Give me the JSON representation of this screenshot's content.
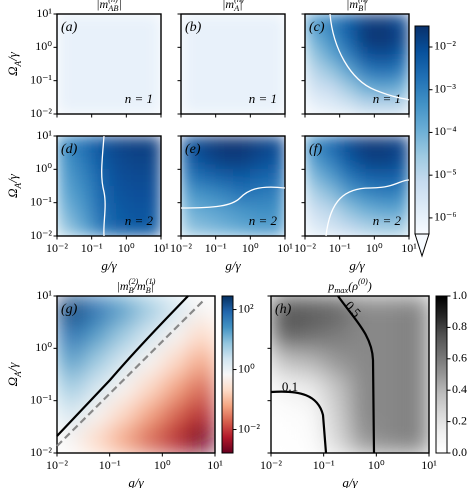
{
  "chart_data": [
    {
      "type": "heatmap",
      "title": "|m^{(n)}_{AB}|",
      "panel_label": "(a)",
      "annotation": "n = 1",
      "ylabel": "Ω_A/γ",
      "xscale": "log",
      "yscale": "log",
      "xlim": [
        0.01,
        10
      ],
      "ylim": [
        0.01,
        10
      ],
      "xticks": [
        0.01,
        0.1,
        1,
        10
      ],
      "xticklabels": false,
      "yticks": [
        {
          "value": 0.01,
          "label": "10⁻²"
        },
        {
          "value": 0.1,
          "label": "10⁻¹"
        },
        {
          "value": 1,
          "label": "10⁰"
        },
        {
          "value": 10,
          "label": "10¹"
        }
      ],
      "colormap": "Blues",
      "zscale": "log",
      "clim": [
        4.2e-07,
        0.031
      ],
      "z": [
        [
          1e-06,
          1e-06,
          1e-06,
          1e-06,
          1e-06,
          1e-06
        ],
        [
          1e-06,
          1e-06,
          1e-06,
          1e-06,
          1e-06,
          1e-06
        ],
        [
          1e-06,
          1e-06,
          1e-06,
          1e-06,
          1e-06,
          1e-06
        ],
        [
          1e-06,
          1e-06,
          1e-06,
          1e-06,
          1e-06,
          1e-06
        ],
        [
          1e-06,
          1e-06,
          1e-06,
          1e-06,
          1e-06,
          1e-06
        ],
        [
          1e-06,
          1e-06,
          1e-06,
          1e-06,
          1e-06,
          1e-06
        ]
      ]
    },
    {
      "type": "heatmap",
      "title": "|m^{(n)}_{A}|",
      "panel_label": "(b)",
      "annotation": "n = 1",
      "xscale": "log",
      "yscale": "log",
      "xlim": [
        0.01,
        10
      ],
      "ylim": [
        0.01,
        10
      ],
      "xticks": [
        0.01,
        0.1,
        1,
        10
      ],
      "xticklabels": false,
      "yticks": [
        0.01,
        0.1,
        1,
        10
      ],
      "yticklabels": false,
      "colormap": "Blues",
      "zscale": "log",
      "clim": [
        4.2e-07,
        0.031
      ],
      "z": [
        [
          1e-06,
          1e-06,
          1e-06,
          1e-06,
          1e-06,
          1e-06
        ],
        [
          1e-06,
          1e-06,
          1e-06,
          1e-06,
          1e-06,
          1e-06
        ],
        [
          1e-06,
          1e-06,
          1e-06,
          1e-06,
          1e-06,
          1e-06
        ],
        [
          1e-06,
          1e-06,
          1e-06,
          1e-06,
          1e-06,
          1e-06
        ],
        [
          1e-06,
          1e-06,
          1e-06,
          1e-06,
          1e-06,
          1e-06
        ],
        [
          1e-06,
          1e-06,
          1e-06,
          1e-06,
          1e-06,
          1e-06
        ]
      ]
    },
    {
      "type": "heatmap",
      "title": "|m^{(n)}_{B}|",
      "panel_label": "(c)",
      "annotation": "n = 1",
      "xscale": "log",
      "yscale": "log",
      "xlim": [
        0.01,
        10
      ],
      "ylim": [
        0.01,
        10
      ],
      "xticks": [
        0.01,
        0.1,
        1,
        10
      ],
      "xticklabels": false,
      "yticks": [
        0.01,
        0.1,
        1,
        10
      ],
      "yticklabels": false,
      "colormap": "Blues",
      "zscale": "log",
      "clim": [
        4.2e-07,
        0.031
      ],
      "z": [
        [
          0.00032,
          0.001,
          0.005,
          0.016,
          0.02,
          0.01
        ],
        [
          0.0001,
          0.0005,
          0.0032,
          0.02,
          0.025,
          0.013
        ],
        [
          3.2e-05,
          0.00016,
          0.001,
          0.0063,
          0.01,
          0.005
        ],
        [
          1e-05,
          3.2e-05,
          0.00016,
          0.001,
          0.0016,
          0.001
        ],
        [
          3.2e-06,
          6.3e-06,
          2.5e-05,
          0.0001,
          0.00016,
          0.0001
        ],
        [
          1e-06,
          1.6e-06,
          3.2e-06,
          1e-05,
          1e-05,
          1e-05
        ]
      ]
    },
    {
      "type": "heatmap",
      "panel_label": "(d)",
      "annotation": "n = 2",
      "xlabel": "g/γ",
      "ylabel": "Ω_A/γ",
      "xscale": "log",
      "yscale": "log",
      "xlim": [
        0.01,
        10
      ],
      "ylim": [
        0.01,
        10
      ],
      "xticks": [
        {
          "value": 0.01,
          "label": "10⁻²"
        },
        {
          "value": 0.1,
          "label": "10⁻¹"
        },
        {
          "value": 1,
          "label": "10⁰"
        },
        {
          "value": 10,
          "label": "10¹"
        }
      ],
      "yticks": [
        {
          "value": 0.01,
          "label": "10⁻²"
        },
        {
          "value": 0.1,
          "label": "10⁻¹"
        },
        {
          "value": 1,
          "label": "10⁰"
        },
        {
          "value": 10,
          "label": "10¹"
        }
      ],
      "colormap": "Blues",
      "zscale": "log",
      "clim": [
        4.2e-07,
        0.031
      ],
      "z": [
        [
          0.00063,
          0.002,
          0.0063,
          0.013,
          0.016,
          0.016
        ],
        [
          0.0004,
          0.0013,
          0.005,
          0.01,
          0.013,
          0.013
        ],
        [
          0.00025,
          0.0008,
          0.0032,
          0.008,
          0.01,
          0.01
        ],
        [
          0.00016,
          0.0005,
          0.0025,
          0.0063,
          0.008,
          0.008
        ],
        [
          8e-05,
          0.00032,
          0.002,
          0.005,
          0.0063,
          0.0063
        ],
        [
          3.2e-05,
          0.00016,
          0.0013,
          0.004,
          0.005,
          0.005
        ]
      ]
    },
    {
      "type": "heatmap",
      "panel_label": "(e)",
      "annotation": "n = 2",
      "xlabel": "g/γ",
      "xscale": "log",
      "yscale": "log",
      "xlim": [
        0.01,
        10
      ],
      "ylim": [
        0.01,
        10
      ],
      "xticks": [
        {
          "value": 0.01,
          "label": "10⁻²"
        },
        {
          "value": 0.1,
          "label": "10⁻¹"
        },
        {
          "value": 1,
          "label": "10⁰"
        },
        {
          "value": 10,
          "label": "10¹"
        }
      ],
      "yticks": [
        0.01,
        0.1,
        1,
        10
      ],
      "yticklabels": false,
      "colormap": "Blues",
      "zscale": "log",
      "clim": [
        4.2e-07,
        0.031
      ],
      "z": [
        [
          0.0063,
          0.016,
          0.025,
          0.025,
          0.016,
          0.01
        ],
        [
          0.004,
          0.01,
          0.016,
          0.016,
          0.01,
          0.0063
        ],
        [
          0.0013,
          0.0025,
          0.004,
          0.005,
          0.0032,
          0.0025
        ],
        [
          0.00032,
          0.0005,
          0.0008,
          0.0016,
          0.0013,
          0.001
        ],
        [
          0.0001,
          0.00016,
          0.00025,
          0.0004,
          0.0005,
          0.0005
        ],
        [
          4e-05,
          6.3e-05,
          0.0001,
          0.00016,
          0.00025,
          0.00025
        ]
      ]
    },
    {
      "type": "heatmap",
      "panel_label": "(f)",
      "annotation": "n = 2",
      "xlabel": "g/γ",
      "xscale": "log",
      "yscale": "log",
      "xlim": [
        0.01,
        10
      ],
      "ylim": [
        0.01,
        10
      ],
      "xticks": [
        {
          "value": 0.01,
          "label": "10⁻²"
        },
        {
          "value": 0.1,
          "label": "10⁻¹"
        },
        {
          "value": 1,
          "label": "10⁰"
        },
        {
          "value": 10,
          "label": "10¹"
        }
      ],
      "yticks": [
        0.01,
        0.1,
        1,
        10
      ],
      "yticklabels": false,
      "colormap": "Blues",
      "zscale": "log",
      "clim": [
        4.2e-07,
        0.031
      ],
      "z": [
        [
          0.00063,
          0.0025,
          0.01,
          0.02,
          0.02,
          0.013
        ],
        [
          0.00025,
          0.001,
          0.005,
          0.013,
          0.016,
          0.01
        ],
        [
          6.3e-05,
          0.00025,
          0.0013,
          0.0032,
          0.004,
          0.0032
        ],
        [
          1.6e-05,
          5e-05,
          0.00025,
          0.00063,
          0.001,
          0.0008
        ],
        [
          5e-06,
          1e-05,
          4e-05,
          0.0001,
          0.00016,
          0.00016
        ],
        [
          1.6e-06,
          3.2e-06,
          8e-06,
          1.6e-05,
          2.5e-05,
          2.5e-05
        ]
      ]
    },
    {
      "type": "heatmap",
      "title": "|m^{(2)}_{B}/m^{(1)}_{B}|",
      "panel_label": "(g)",
      "xlabel": "g/γ",
      "ylabel": "Ω_A/γ",
      "xscale": "log",
      "yscale": "log",
      "xlim": [
        0.01,
        10
      ],
      "ylim": [
        0.01,
        10
      ],
      "xticks": [
        {
          "value": 0.01,
          "label": "10⁻²"
        },
        {
          "value": 0.1,
          "label": "10⁻¹"
        },
        {
          "value": 1,
          "label": "10⁰"
        },
        {
          "value": 10,
          "label": "10¹"
        }
      ],
      "yticks": [
        {
          "value": 0.01,
          "label": "10⁻²"
        },
        {
          "value": 0.1,
          "label": "10⁻¹"
        },
        {
          "value": 1,
          "label": "10⁰"
        },
        {
          "value": 10,
          "label": "10¹"
        }
      ],
      "colormap": "RdBu",
      "zscale": "log",
      "clim": [
        0.00165,
        283
      ],
      "z": [
        [
          200,
          63,
          20,
          6.3,
          2,
          0.63
        ],
        [
          63,
          20,
          6.3,
          2,
          0.63,
          0.2
        ],
        [
          20,
          6.3,
          2,
          0.63,
          0.2,
          0.063
        ],
        [
          6.3,
          2,
          0.63,
          0.2,
          0.063,
          0.02
        ],
        [
          2,
          0.63,
          0.2,
          0.063,
          0.02,
          0.0063
        ],
        [
          0.63,
          0.2,
          0.063,
          0.02,
          0.0063,
          0.002
        ]
      ]
    },
    {
      "type": "heatmap",
      "title": "p_{max}(ρ^{(0)})",
      "panel_label": "(h)",
      "xlabel": "g/γ",
      "xscale": "log",
      "yscale": "log",
      "xlim": [
        0.01,
        10
      ],
      "ylim": [
        0.01,
        10
      ],
      "xticks": [
        {
          "value": 0.01,
          "label": "10⁻²"
        },
        {
          "value": 0.1,
          "label": "10⁻¹"
        },
        {
          "value": 1,
          "label": "10⁰"
        },
        {
          "value": 10,
          "label": "10¹"
        }
      ],
      "yticks": [
        0.01,
        0.1,
        1,
        10
      ],
      "yticklabels": false,
      "colormap": "Greys",
      "zscale": "linear",
      "clim": [
        0,
        1
      ],
      "contours": [
        0.5,
        0.1
      ],
      "z": [
        [
          0.75,
          0.72,
          0.68,
          0.55,
          0.55,
          0.58
        ],
        [
          0.7,
          0.65,
          0.6,
          0.55,
          0.55,
          0.58
        ],
        [
          0.35,
          0.4,
          0.5,
          0.55,
          0.55,
          0.58
        ],
        [
          0.1,
          0.15,
          0.35,
          0.55,
          0.55,
          0.58
        ],
        [
          0.02,
          0.04,
          0.3,
          0.55,
          0.55,
          0.58
        ],
        [
          0.01,
          0.02,
          0.25,
          0.5,
          0.55,
          0.58
        ]
      ]
    },
    {
      "type": "colorbar",
      "colormap": "Blues",
      "scale": "log",
      "clim": [
        4.2e-07,
        0.031
      ],
      "extend": "min",
      "ticks": [
        {
          "value": 0.01,
          "label": "10⁻²"
        },
        {
          "value": 0.001,
          "label": "10⁻³"
        },
        {
          "value": 0.0001,
          "label": "10⁻⁴"
        },
        {
          "value": 1e-05,
          "label": "10⁻⁵"
        },
        {
          "value": 1e-06,
          "label": "10⁻⁶"
        }
      ]
    },
    {
      "type": "colorbar",
      "colormap": "RdBu",
      "scale": "log",
      "clim": [
        0.00165,
        283
      ],
      "ticks": [
        {
          "value": 100,
          "label": "10²"
        },
        {
          "value": 1,
          "label": "10⁰"
        },
        {
          "value": 0.01,
          "label": "10⁻²"
        }
      ]
    },
    {
      "type": "colorbar",
      "colormap": "Greys",
      "scale": "linear",
      "clim": [
        0,
        1
      ],
      "ticks": [
        {
          "value": 0,
          "label": "0.0"
        },
        0.2,
        0.4,
        0.6,
        0.8,
        {
          "value": 1,
          "label": "1.0"
        }
      ]
    }
  ]
}
